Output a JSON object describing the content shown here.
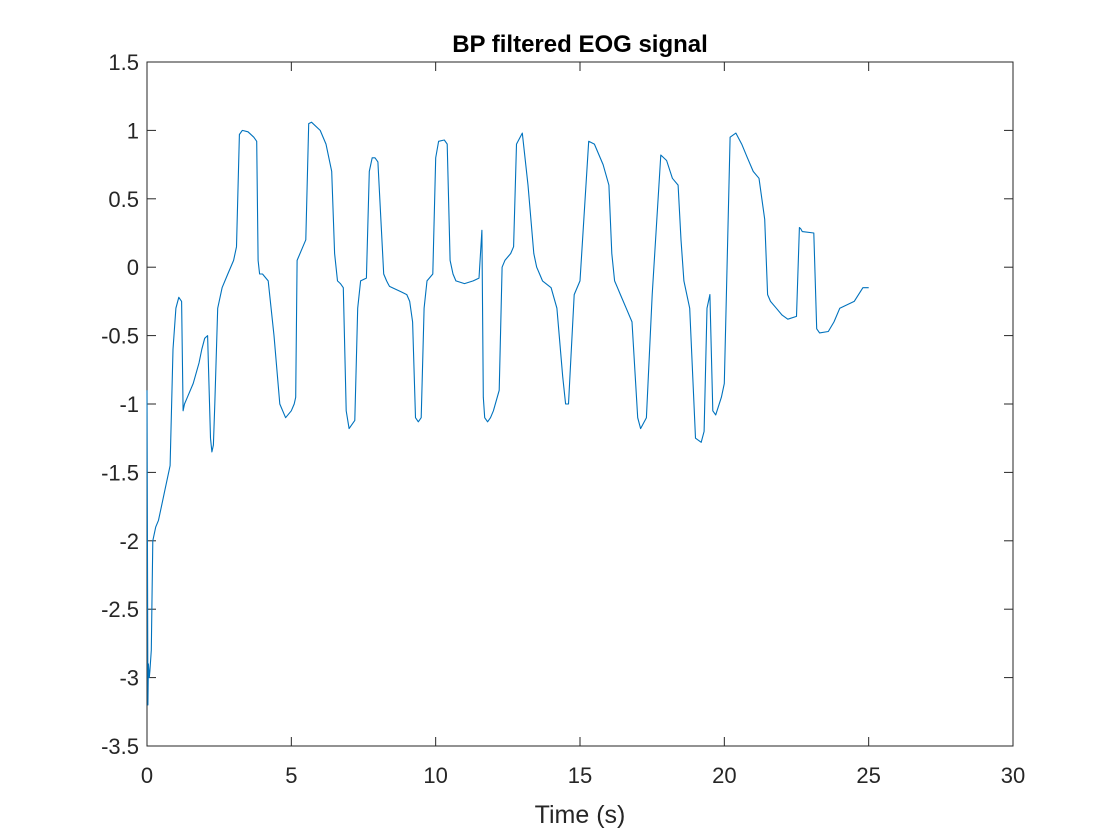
{
  "chart_data": {
    "type": "line",
    "title": "BP filtered EOG signal",
    "xlabel": "Time (s)",
    "ylabel": "",
    "xlim": [
      0,
      30
    ],
    "ylim": [
      -3.5,
      1.5
    ],
    "x_ticks": [
      0,
      5,
      10,
      15,
      20,
      25,
      30
    ],
    "x_tick_labels": [
      "0",
      "5",
      "10",
      "15",
      "20",
      "25",
      "30"
    ],
    "y_ticks": [
      1.5,
      1,
      0.5,
      0,
      -0.5,
      -1,
      -1.5,
      -2,
      -2.5,
      -3,
      -3.5
    ],
    "y_tick_labels": [
      "1.5",
      "1",
      "0.5",
      "0",
      "-0.5",
      "-1",
      "-1.5",
      "-2",
      "-2.5",
      "-3",
      "-3.5"
    ],
    "grid": false,
    "series_color": "#0072BD",
    "series": [
      {
        "x": [
          0,
          0.03,
          0.05,
          0.08,
          0.1,
          0.15,
          0.2,
          0.3,
          0.4,
          0.5,
          0.6,
          0.8,
          0.9,
          1.0,
          1.1,
          1.2,
          1.25,
          1.3,
          1.4,
          1.6,
          1.8,
          1.9,
          2.0,
          2.1,
          2.2,
          2.25,
          2.3,
          2.35,
          2.45,
          2.6,
          2.8,
          3.0,
          3.1,
          3.2,
          3.3,
          3.5,
          3.7,
          3.8,
          3.85,
          3.9,
          4.0,
          4.2,
          4.4,
          4.6,
          4.8,
          5.0,
          5.1,
          5.15,
          5.2,
          5.4,
          5.5,
          5.6,
          5.7,
          6.0,
          6.2,
          6.4,
          6.5,
          6.6,
          6.7,
          6.8,
          6.9,
          7.0,
          7.2,
          7.3,
          7.4,
          7.6,
          7.7,
          7.8,
          7.9,
          8.0,
          8.2,
          8.3,
          8.35,
          8.4,
          8.5,
          8.8,
          9.0,
          9.1,
          9.2,
          9.3,
          9.4,
          9.5,
          9.6,
          9.7,
          9.9,
          10.0,
          10.1,
          10.3,
          10.4,
          10.5,
          10.6,
          10.7,
          11.0,
          11.3,
          11.5,
          11.6,
          11.65,
          11.7,
          11.8,
          11.9,
          12.0,
          12.2,
          12.3,
          12.4,
          12.6,
          12.7,
          12.8,
          13.0,
          13.2,
          13.4,
          13.5,
          13.6,
          13.7,
          14.0,
          14.2,
          14.4,
          14.5,
          14.6,
          14.8,
          15.0,
          15.3,
          15.5,
          15.8,
          16.0,
          16.1,
          16.2,
          16.3,
          16.4,
          16.6,
          16.8,
          17.0,
          17.1,
          17.3,
          17.5,
          17.8,
          18.0,
          18.2,
          18.4,
          18.5,
          18.6,
          18.8,
          19.0,
          19.2,
          19.3,
          19.4,
          19.5,
          19.6,
          19.7,
          19.9,
          20.0,
          20.2,
          20.4,
          20.6,
          20.8,
          21.0,
          21.2,
          21.4,
          21.5,
          21.6,
          21.8,
          22.0,
          22.2,
          22.5,
          22.6,
          22.65,
          22.7,
          23.1,
          23.2,
          23.3,
          23.6,
          23.8,
          24.0,
          24.5,
          24.8,
          25.0
        ],
        "y": [
          -0.9,
          -3.2,
          -2.9,
          -3.0,
          -2.95,
          -2.8,
          -2.0,
          -1.9,
          -1.85,
          -1.75,
          -1.65,
          -1.45,
          -0.6,
          -0.3,
          -0.22,
          -0.25,
          -1.05,
          -1.0,
          -0.95,
          -0.85,
          -0.7,
          -0.6,
          -0.52,
          -0.5,
          -1.25,
          -1.35,
          -1.3,
          -1.0,
          -0.3,
          -0.15,
          -0.05,
          0.05,
          0.15,
          0.97,
          1.0,
          0.99,
          0.95,
          0.92,
          0.05,
          -0.05,
          -0.05,
          -0.1,
          -0.5,
          -1.0,
          -1.1,
          -1.05,
          -1.0,
          -0.95,
          0.05,
          0.15,
          0.2,
          1.05,
          1.06,
          1.0,
          0.9,
          0.7,
          0.1,
          -0.1,
          -0.12,
          -0.15,
          -1.05,
          -1.18,
          -1.12,
          -0.3,
          -0.1,
          -0.08,
          0.7,
          0.8,
          0.8,
          0.77,
          -0.05,
          -0.1,
          -0.12,
          -0.14,
          -0.15,
          -0.18,
          -0.2,
          -0.25,
          -0.4,
          -1.1,
          -1.13,
          -1.1,
          -0.3,
          -0.1,
          -0.05,
          0.8,
          0.92,
          0.93,
          0.9,
          0.05,
          -0.05,
          -0.1,
          -0.12,
          -0.1,
          -0.08,
          0.27,
          -0.95,
          -1.1,
          -1.13,
          -1.1,
          -1.05,
          -0.9,
          0.0,
          0.05,
          0.1,
          0.15,
          0.9,
          0.98,
          0.6,
          0.1,
          0.0,
          -0.05,
          -0.1,
          -0.15,
          -0.3,
          -0.8,
          -1.0,
          -1.0,
          -0.2,
          -0.1,
          0.92,
          0.9,
          0.75,
          0.6,
          0.1,
          -0.1,
          -0.15,
          -0.2,
          -0.3,
          -0.4,
          -1.1,
          -1.18,
          -1.1,
          -0.2,
          0.82,
          0.78,
          0.65,
          0.6,
          0.2,
          -0.1,
          -0.3,
          -1.25,
          -1.28,
          -1.2,
          -0.3,
          -0.2,
          -1.05,
          -1.08,
          -0.95,
          -0.85,
          0.95,
          0.98,
          0.9,
          0.8,
          0.7,
          0.65,
          0.35,
          -0.2,
          -0.25,
          -0.3,
          -0.35,
          -0.38,
          -0.36,
          0.29,
          0.28,
          0.26,
          0.25,
          -0.45,
          -0.48,
          -0.47,
          -0.4,
          -0.3,
          -0.25,
          -0.15,
          -0.15
        ]
      }
    ]
  }
}
